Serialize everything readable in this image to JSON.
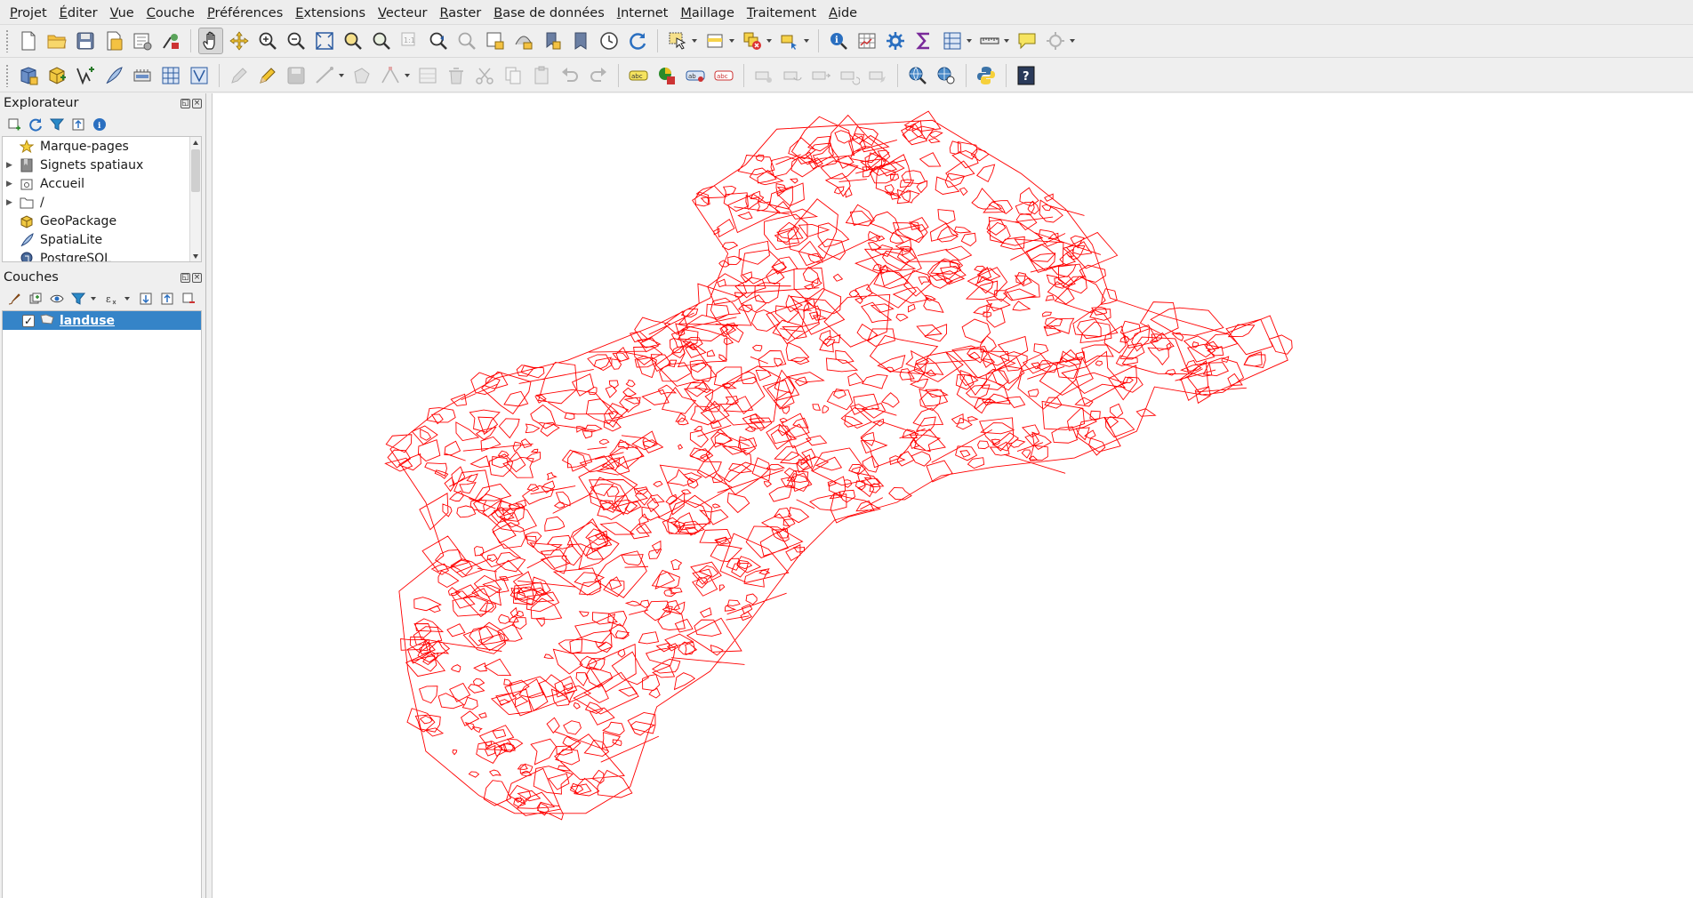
{
  "menu": [
    {
      "pre": "",
      "ul": "P",
      "post": "rojet"
    },
    {
      "pre": "",
      "ul": "É",
      "post": "diter"
    },
    {
      "pre": "",
      "ul": "V",
      "post": "ue"
    },
    {
      "pre": "",
      "ul": "C",
      "post": "ouche"
    },
    {
      "pre": "",
      "ul": "P",
      "post": "références"
    },
    {
      "pre": "",
      "ul": "E",
      "post": "xtensions"
    },
    {
      "pre": "",
      "ul": "V",
      "post": "ecteur"
    },
    {
      "pre": "",
      "ul": "R",
      "post": "aster"
    },
    {
      "pre": "",
      "ul": "B",
      "post": "ase de données"
    },
    {
      "pre": "",
      "ul": "I",
      "post": "nternet"
    },
    {
      "pre": "",
      "ul": "M",
      "post": "aillage"
    },
    {
      "pre": "",
      "ul": "T",
      "post": "raitement"
    },
    {
      "pre": "",
      "ul": "A",
      "post": "ide"
    }
  ],
  "explorer": {
    "title": "Explorateur",
    "items": [
      {
        "label": "Marque-pages",
        "icon": "star-icon",
        "expandable": false
      },
      {
        "label": "Signets spatiaux",
        "icon": "spatial-bookmark-icon",
        "expandable": true
      },
      {
        "label": "Accueil",
        "icon": "home-folder-icon",
        "expandable": true
      },
      {
        "label": "/",
        "icon": "folder-icon",
        "expandable": true
      },
      {
        "label": "GeoPackage",
        "icon": "geopackage-icon",
        "expandable": false
      },
      {
        "label": "SpatiaLite",
        "icon": "spatialite-icon",
        "expandable": false
      },
      {
        "label": "PostgreSQL",
        "icon": "postgresql-icon",
        "expandable": false
      }
    ]
  },
  "layers": {
    "title": "Couches",
    "items": [
      {
        "label": "landuse",
        "checked": true,
        "selected": true
      }
    ]
  },
  "colors": {
    "polygon_stroke": "#ff0000",
    "selection": "#3584c8"
  }
}
